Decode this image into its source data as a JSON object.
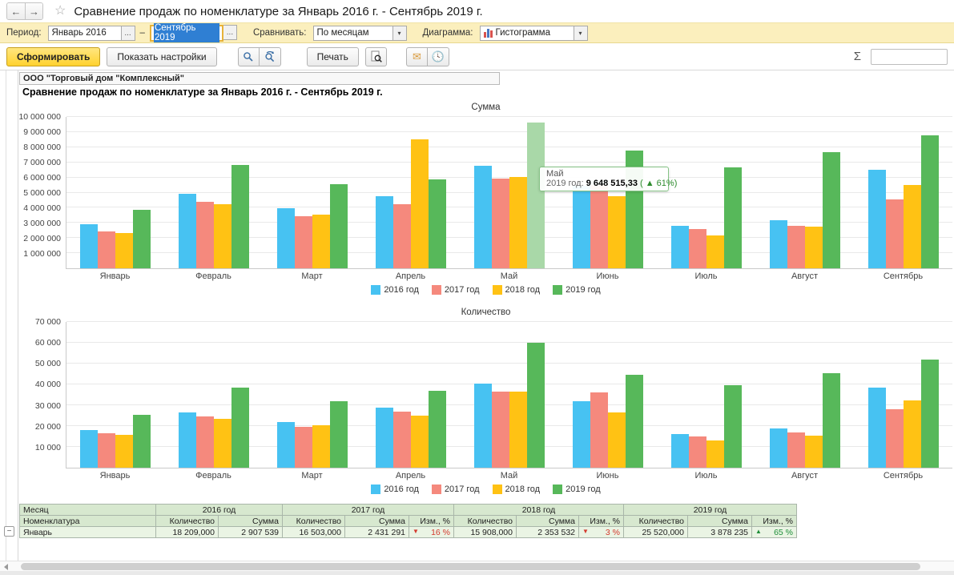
{
  "header": {
    "back": "←",
    "forward": "→",
    "star": "☆",
    "title": "Сравнение продаж по номенклатуре за Январь 2016 г. - Сентябрь 2019 г."
  },
  "filter_bar": {
    "period_label": "Период:",
    "period_from": "Январь 2016",
    "dash": "–",
    "period_to": "Сентябрь 2019",
    "ellipsis": "...",
    "compare_label": "Сравнивать:",
    "compare_value": "По месяцам",
    "chart_label": "Диаграмма:",
    "chart_value": "Гистограмма",
    "dropdown_arrow": "▾"
  },
  "toolbar": {
    "generate_label": "Сформировать",
    "settings_label": "Показать настройки",
    "print_label": "Печать",
    "sigma": "Σ",
    "sigma_value": ""
  },
  "report": {
    "company": "ООО \"Торговый дом \"Комплексный\"",
    "title": "Сравнение продаж по номенклатуре за Январь 2016 г. - Сентябрь 2019 г."
  },
  "tooltip": {
    "title": "Май",
    "label": "2019 год:",
    "value": "9 648 515,33",
    "change": "( ▲ 61%)"
  },
  "chart_data": [
    {
      "type": "bar",
      "title": "Сумма",
      "categories": [
        "Январь",
        "Февраль",
        "Март",
        "Апрель",
        "Май",
        "Июнь",
        "Июль",
        "Август",
        "Сентябрь"
      ],
      "series": [
        {
          "name": "2016 год",
          "color": "#47C2F2",
          "values": [
            2907539,
            4920000,
            3980000,
            4740000,
            6760000,
            5450000,
            2780000,
            3200000,
            6490000
          ]
        },
        {
          "name": "2017 год",
          "color": "#F5897D",
          "values": [
            2431291,
            4380000,
            3450000,
            4230000,
            5930000,
            5500000,
            2610000,
            2830000,
            4550000
          ]
        },
        {
          "name": "2018 год",
          "color": "#FFC214",
          "values": [
            2353532,
            4230000,
            3570000,
            8530000,
            6030000,
            4750000,
            2190000,
            2730000,
            5510000
          ]
        },
        {
          "name": "2019 год",
          "color": "#57B85A",
          "values": [
            3878235,
            6830000,
            5530000,
            5900000,
            9648515,
            7800000,
            6660000,
            7670000,
            8800000
          ]
        }
      ],
      "ylim": [
        0,
        10000000
      ],
      "ticks": [
        {
          "value": 10000000,
          "label": "10 000 000"
        },
        {
          "value": 9000000,
          "label": "9 000 000"
        },
        {
          "value": 8000000,
          "label": "8 000 000"
        },
        {
          "value": 7000000,
          "label": "7 000 000"
        },
        {
          "value": 6000000,
          "label": "6 000 000"
        },
        {
          "value": 5000000,
          "label": "5 000 000"
        },
        {
          "value": 4000000,
          "label": "4 000 000"
        },
        {
          "value": 3000000,
          "label": "3 000 000"
        },
        {
          "value": 2000000,
          "label": "2 000 000"
        },
        {
          "value": 1000000,
          "label": "1 000 000"
        }
      ],
      "highlight": {
        "series": 3,
        "index": 4,
        "color": "#A9D8A8"
      },
      "legend_position": "bottom",
      "grid": true
    },
    {
      "type": "bar",
      "title": "Количество",
      "categories": [
        "Январь",
        "Февраль",
        "Март",
        "Апрель",
        "Май",
        "Июнь",
        "Июль",
        "Август",
        "Сентябрь"
      ],
      "series": [
        {
          "name": "2016 год",
          "color": "#47C2F2",
          "values": [
            18209,
            26500,
            22000,
            29000,
            40500,
            32000,
            16000,
            19000,
            38500
          ]
        },
        {
          "name": "2017 год",
          "color": "#F5897D",
          "values": [
            16503,
            24500,
            19500,
            27000,
            36500,
            36000,
            15000,
            17000,
            28000
          ]
        },
        {
          "name": "2018 год",
          "color": "#FFC214",
          "values": [
            15908,
            23500,
            20500,
            25000,
            36500,
            26500,
            13000,
            15500,
            32500
          ]
        },
        {
          "name": "2019 год",
          "color": "#57B85A",
          "values": [
            25520,
            38500,
            32000,
            37000,
            60000,
            44500,
            39500,
            45500,
            52000
          ]
        }
      ],
      "ylim": [
        0,
        70000
      ],
      "ticks": [
        {
          "value": 70000,
          "label": "70 000"
        },
        {
          "value": 60000,
          "label": "60 000"
        },
        {
          "value": 50000,
          "label": "50 000"
        },
        {
          "value": 40000,
          "label": "40 000"
        },
        {
          "value": 30000,
          "label": "30 000"
        },
        {
          "value": 20000,
          "label": "20 000"
        },
        {
          "value": 10000,
          "label": "10 000"
        }
      ],
      "legend_position": "bottom",
      "grid": true
    }
  ],
  "table": {
    "corner_top": "Месяц",
    "corner_bottom": "Номенклатура",
    "group_toggle": "−",
    "year_groups": [
      {
        "year": "2016 год",
        "cols": [
          "Количество",
          "Сумма"
        ]
      },
      {
        "year": "2017 год",
        "cols": [
          "Количество",
          "Сумма",
          "Изм., %"
        ]
      },
      {
        "year": "2018 год",
        "cols": [
          "Количество",
          "Сумма",
          "Изм., %"
        ]
      },
      {
        "year": "2019 год",
        "cols": [
          "Количество",
          "Сумма",
          "Изм., %"
        ]
      }
    ],
    "rows": [
      {
        "month": "Январь",
        "cells": [
          {
            "text": "18 209,000"
          },
          {
            "text": "2 907 539"
          },
          {
            "text": "16 503,000"
          },
          {
            "text": "2 431 291"
          },
          {
            "arrow": "down",
            "text": "16 %"
          },
          {
            "text": "15 908,000"
          },
          {
            "text": "2 353 532"
          },
          {
            "arrow": "down",
            "text": "3 %"
          },
          {
            "text": "25 520,000"
          },
          {
            "text": "3 878 235"
          },
          {
            "arrow": "up",
            "text": "65 %"
          }
        ]
      }
    ]
  }
}
